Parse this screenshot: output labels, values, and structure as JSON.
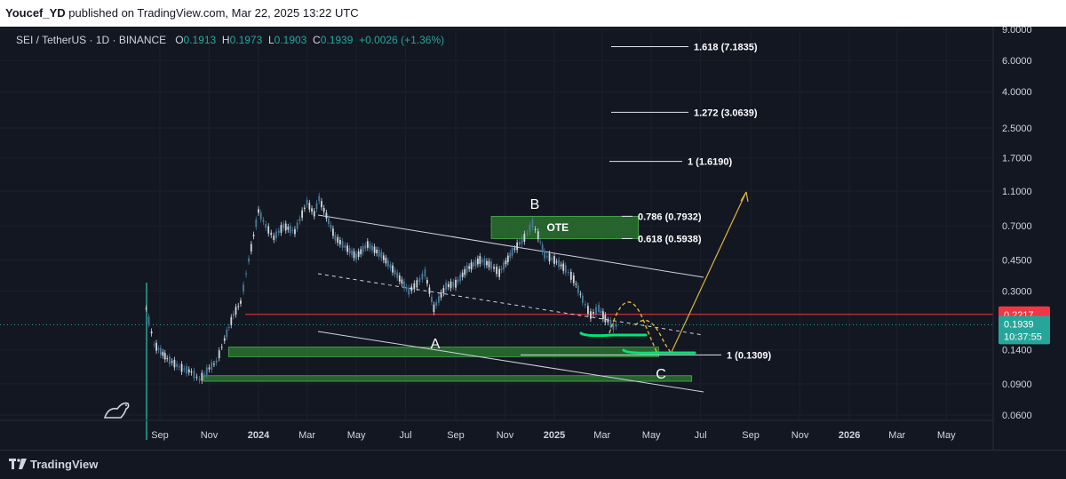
{
  "header": {
    "author": "Youcef_YD",
    "published": "published on TradingView.com, Mar 22, 2025 13:22 UTC"
  },
  "legend": {
    "symbol": "SEI / TetherUS · 1D · BINANCE",
    "o_label": "O",
    "o": "0.1913",
    "h_label": "H",
    "h": "0.1973",
    "l_label": "L",
    "l": "0.1903",
    "c_label": "C",
    "c": "0.1939",
    "change": "+0.0026 (+1.36%)"
  },
  "footer": {
    "brand": "TradingView"
  },
  "colors": {
    "background": "#131722",
    "up": "#26a69a",
    "zone": "#2e7d32",
    "resistance": "#f23645",
    "projection": "#e0b53c",
    "marker": "#00e676"
  },
  "chart_data": {
    "type": "candlestick",
    "scale": "log",
    "ylim": [
      0.05,
      9.5
    ],
    "y_ticks": [
      "9.0000",
      "6.0000",
      "4.0000",
      "2.5000",
      "1.7000",
      "1.1000",
      "0.7000",
      "0.4500",
      "0.3000",
      "0.1400",
      "0.0900",
      "0.0600"
    ],
    "y_tick_values": [
      9.0,
      6.0,
      4.0,
      2.5,
      1.7,
      1.1,
      0.7,
      0.45,
      0.3,
      0.14,
      0.09,
      0.06
    ],
    "x_ticks": [
      "Sep",
      "Nov",
      "2024",
      "Mar",
      "May",
      "Jul",
      "Sep",
      "Nov",
      "2025",
      "Mar",
      "May",
      "Jul",
      "Sep",
      "Nov",
      "2026",
      "Mar",
      "May"
    ],
    "price_series": [
      {
        "date": "2023-08-15",
        "close": 0.24
      },
      {
        "date": "2023-08-25",
        "close": 0.15
      },
      {
        "date": "2023-09-10",
        "close": 0.125
      },
      {
        "date": "2023-09-25",
        "close": 0.112
      },
      {
        "date": "2023-10-10",
        "close": 0.105
      },
      {
        "date": "2023-10-20",
        "close": 0.095
      },
      {
        "date": "2023-11-01",
        "close": 0.11
      },
      {
        "date": "2023-11-10",
        "close": 0.12
      },
      {
        "date": "2023-11-20",
        "close": 0.16
      },
      {
        "date": "2023-12-01",
        "close": 0.22
      },
      {
        "date": "2023-12-10",
        "close": 0.26
      },
      {
        "date": "2023-12-20",
        "close": 0.45
      },
      {
        "date": "2024-01-01",
        "close": 0.85
      },
      {
        "date": "2024-01-10",
        "close": 0.7
      },
      {
        "date": "2024-01-20",
        "close": 0.6
      },
      {
        "date": "2024-02-01",
        "close": 0.7
      },
      {
        "date": "2024-02-15",
        "close": 0.65
      },
      {
        "date": "2024-03-01",
        "close": 0.95
      },
      {
        "date": "2024-03-10",
        "close": 0.82
      },
      {
        "date": "2024-03-16",
        "close": 1.0
      },
      {
        "date": "2024-03-25",
        "close": 0.8
      },
      {
        "date": "2024-04-05",
        "close": 0.6
      },
      {
        "date": "2024-04-20",
        "close": 0.52
      },
      {
        "date": "2024-05-01",
        "close": 0.47
      },
      {
        "date": "2024-05-15",
        "close": 0.55
      },
      {
        "date": "2024-06-01",
        "close": 0.48
      },
      {
        "date": "2024-06-15",
        "close": 0.4
      },
      {
        "date": "2024-07-05",
        "close": 0.3
      },
      {
        "date": "2024-07-15",
        "close": 0.33
      },
      {
        "date": "2024-07-25",
        "close": 0.38
      },
      {
        "date": "2024-08-05",
        "close": 0.24
      },
      {
        "date": "2024-08-20",
        "close": 0.32
      },
      {
        "date": "2024-09-01",
        "close": 0.33
      },
      {
        "date": "2024-09-15",
        "close": 0.4
      },
      {
        "date": "2024-10-01",
        "close": 0.45
      },
      {
        "date": "2024-10-15",
        "close": 0.42
      },
      {
        "date": "2024-10-25",
        "close": 0.38
      },
      {
        "date": "2024-11-10",
        "close": 0.5
      },
      {
        "date": "2024-11-25",
        "close": 0.6
      },
      {
        "date": "2024-12-05",
        "close": 0.72
      },
      {
        "date": "2024-12-12",
        "close": 0.62
      },
      {
        "date": "2024-12-20",
        "close": 0.48
      },
      {
        "date": "2025-01-01",
        "close": 0.45
      },
      {
        "date": "2025-01-15",
        "close": 0.4
      },
      {
        "date": "2025-01-25",
        "close": 0.35
      },
      {
        "date": "2025-02-05",
        "close": 0.27
      },
      {
        "date": "2025-02-15",
        "close": 0.22
      },
      {
        "date": "2025-02-25",
        "close": 0.24
      },
      {
        "date": "2025-03-05",
        "close": 0.21
      },
      {
        "date": "2025-03-15",
        "close": 0.19
      },
      {
        "date": "2025-03-22",
        "close": 0.1939
      }
    ],
    "fib_levels": [
      {
        "label": "1.618 (7.1835)",
        "value": 7.1835
      },
      {
        "label": "1.272 (3.0639)",
        "value": 3.0639
      },
      {
        "label": "1 (1.6190)",
        "value": 1.619
      },
      {
        "label": "0.786 (0.7932)",
        "value": 0.7932
      },
      {
        "label": "0.618 (0.5938)",
        "value": 0.5938
      },
      {
        "label": "1 (0.1309)",
        "value": 0.1309
      }
    ],
    "zones": [
      {
        "label": "OTE",
        "from": 0.5938,
        "to": 0.7932,
        "start": "2024-10-15",
        "end": "2025-04-15"
      },
      {
        "from": 0.128,
        "to": 0.145,
        "start": "2023-11-25",
        "end": "2025-05-10"
      },
      {
        "from": 0.093,
        "to": 0.1,
        "start": "2023-10-25",
        "end": "2025-06-20"
      }
    ],
    "annotations": [
      "A",
      "B",
      "C"
    ],
    "price_marks": [
      {
        "label": "0.2217",
        "value": 0.2217,
        "color": "#f23645"
      },
      {
        "label": "0.1939",
        "sublabel": "10:37:55",
        "value": 0.1939,
        "color": "#26a69a"
      }
    ]
  }
}
